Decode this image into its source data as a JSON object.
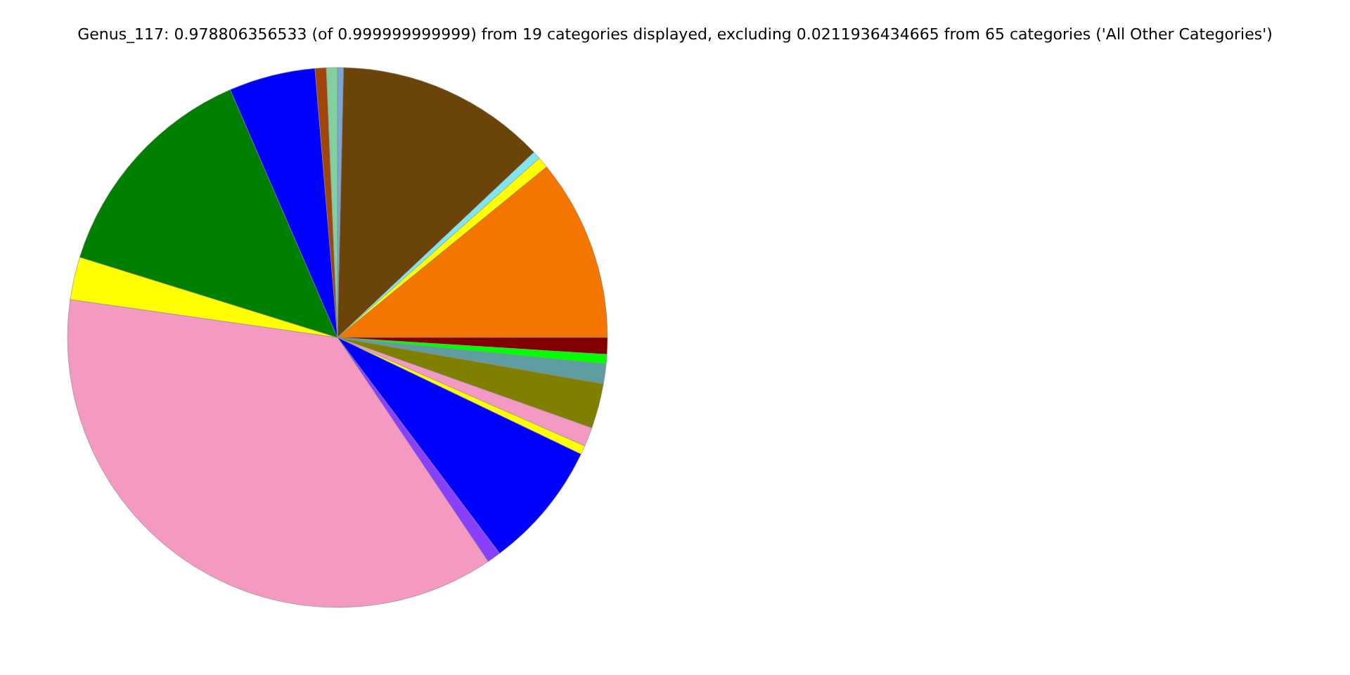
{
  "chart_data": {
    "type": "pie",
    "title": "Genus_117: 0.978806356533 (of 0.999999999999) from 19 categories displayed, excluding 0.0211936434665 from 65 categories ('All Other Categories')",
    "categories": [
      null,
      null,
      null,
      null,
      null,
      null,
      null,
      null,
      null,
      null,
      null,
      null,
      null,
      null,
      null,
      null,
      null,
      null,
      null
    ],
    "values": [
      0.36,
      12.61,
      0.47,
      0.67,
      10.89,
      1.0,
      0.58,
      1.17,
      2.69,
      1.14,
      0.53,
      7.64,
      0.83,
      36.67,
      2.56,
      13.69,
      5.17,
      0.67,
      0.66
    ],
    "colors": [
      "#7ba7d6",
      "#6b4409",
      "#7fe5f0",
      "#ffff00",
      "#f47500",
      "#800000",
      "#00ff00",
      "#5f9ea0",
      "#808000",
      "#f49ac2",
      "#ffff00",
      "#0000ff",
      "#8a3ffc",
      "#f49ac2",
      "#ffff00",
      "#008000",
      "#0000ff",
      "#a0460a",
      "#80d0a0"
    ],
    "legend": false
  }
}
